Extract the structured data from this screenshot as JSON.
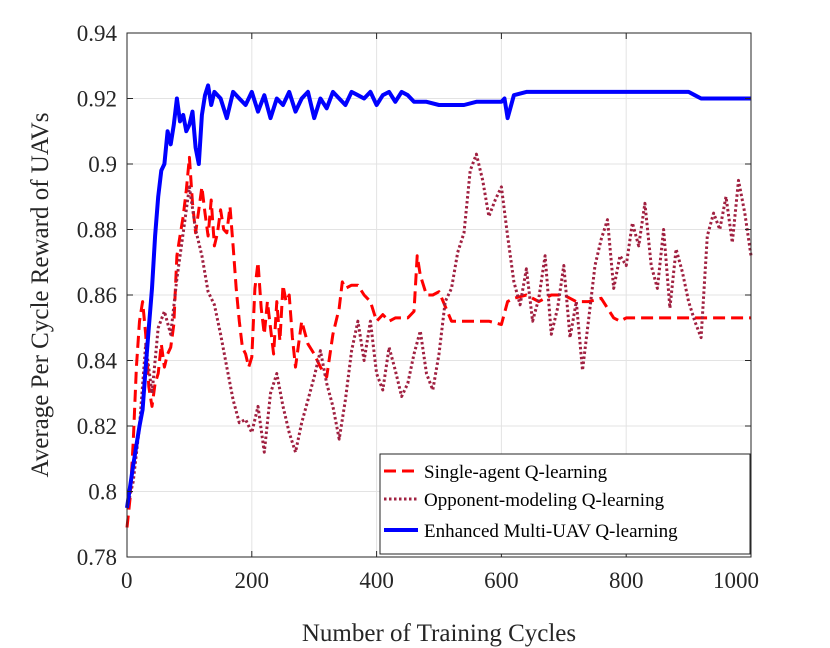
{
  "chart_data": {
    "type": "line",
    "title": "",
    "xlabel": "Number of Training Cycles",
    "ylabel": "Average Per Cycle Reward of UAVs",
    "xlim": [
      0,
      1000
    ],
    "ylim": [
      0.78,
      0.94
    ],
    "grid": true,
    "legend_position": "bottom-right",
    "xticks": [
      {
        "value": 0,
        "label": "0"
      },
      {
        "value": 200,
        "label": "200"
      },
      {
        "value": 400,
        "label": "400"
      },
      {
        "value": 600,
        "label": "600"
      },
      {
        "value": 800,
        "label": "800"
      },
      {
        "value": 1000,
        "label": "1000"
      }
    ],
    "yticks": [
      {
        "value": 0.78,
        "label": "0.78"
      },
      {
        "value": 0.8,
        "label": "0.8"
      },
      {
        "value": 0.82,
        "label": "0.82"
      },
      {
        "value": 0.84,
        "label": "0.84"
      },
      {
        "value": 0.86,
        "label": "0.86"
      },
      {
        "value": 0.88,
        "label": "0.88"
      },
      {
        "value": 0.9,
        "label": "0.9"
      },
      {
        "value": 0.92,
        "label": "0.92"
      },
      {
        "value": 0.94,
        "label": "0.94"
      }
    ],
    "series": [
      {
        "name": "Single-agent Q-learning",
        "color": "#ff0000",
        "style": "dashed",
        "x": [
          0,
          5,
          10,
          15,
          20,
          25,
          30,
          35,
          40,
          45,
          50,
          55,
          60,
          65,
          70,
          75,
          80,
          85,
          90,
          95,
          100,
          105,
          110,
          115,
          120,
          125,
          130,
          135,
          140,
          145,
          150,
          155,
          160,
          165,
          170,
          175,
          180,
          185,
          190,
          195,
          200,
          205,
          210,
          215,
          220,
          225,
          230,
          235,
          240,
          245,
          250,
          255,
          260,
          265,
          270,
          280,
          290,
          300,
          310,
          320,
          330,
          340,
          345,
          350,
          360,
          370,
          380,
          390,
          400,
          410,
          420,
          430,
          440,
          450,
          460,
          465,
          470,
          480,
          490,
          500,
          520,
          540,
          560,
          580,
          600,
          610,
          620,
          640,
          660,
          680,
          700,
          720,
          740,
          760,
          780,
          790,
          800,
          850,
          900,
          950,
          1000
        ],
        "values": [
          0.789,
          0.798,
          0.815,
          0.838,
          0.852,
          0.858,
          0.848,
          0.832,
          0.826,
          0.833,
          0.836,
          0.845,
          0.838,
          0.842,
          0.844,
          0.851,
          0.872,
          0.878,
          0.884,
          0.892,
          0.902,
          0.888,
          0.879,
          0.886,
          0.893,
          0.885,
          0.878,
          0.889,
          0.875,
          0.879,
          0.886,
          0.88,
          0.879,
          0.887,
          0.875,
          0.862,
          0.852,
          0.844,
          0.842,
          0.838,
          0.841,
          0.862,
          0.87,
          0.856,
          0.848,
          0.858,
          0.85,
          0.842,
          0.858,
          0.846,
          0.863,
          0.858,
          0.86,
          0.847,
          0.838,
          0.852,
          0.845,
          0.842,
          0.838,
          0.835,
          0.848,
          0.856,
          0.864,
          0.862,
          0.863,
          0.863,
          0.86,
          0.858,
          0.852,
          0.854,
          0.852,
          0.853,
          0.853,
          0.853,
          0.855,
          0.872,
          0.866,
          0.86,
          0.86,
          0.861,
          0.852,
          0.852,
          0.852,
          0.852,
          0.851,
          0.858,
          0.859,
          0.86,
          0.858,
          0.86,
          0.86,
          0.858,
          0.858,
          0.859,
          0.853,
          0.852,
          0.853,
          0.853,
          0.853,
          0.853,
          0.853
        ]
      },
      {
        "name": "Opponent-modeling Q-learning",
        "color": "#a02040",
        "style": "dotted",
        "x": [
          0,
          10,
          20,
          30,
          40,
          50,
          60,
          70,
          80,
          90,
          100,
          110,
          120,
          130,
          140,
          150,
          160,
          170,
          180,
          190,
          200,
          210,
          220,
          230,
          240,
          250,
          260,
          270,
          280,
          290,
          300,
          310,
          320,
          330,
          340,
          350,
          360,
          370,
          380,
          390,
          400,
          410,
          420,
          430,
          440,
          450,
          460,
          470,
          480,
          490,
          500,
          510,
          520,
          530,
          540,
          550,
          560,
          570,
          580,
          590,
          600,
          610,
          620,
          630,
          640,
          650,
          660,
          670,
          680,
          690,
          700,
          710,
          720,
          730,
          740,
          750,
          760,
          770,
          780,
          790,
          800,
          810,
          820,
          830,
          840,
          850,
          860,
          870,
          880,
          890,
          900,
          910,
          920,
          930,
          940,
          950,
          960,
          970,
          980,
          990,
          1000
        ],
        "values": [
          0.795,
          0.803,
          0.82,
          0.845,
          0.83,
          0.85,
          0.855,
          0.848,
          0.865,
          0.879,
          0.893,
          0.88,
          0.872,
          0.861,
          0.857,
          0.848,
          0.838,
          0.828,
          0.821,
          0.822,
          0.818,
          0.826,
          0.812,
          0.83,
          0.836,
          0.826,
          0.818,
          0.812,
          0.821,
          0.828,
          0.835,
          0.843,
          0.833,
          0.826,
          0.816,
          0.828,
          0.843,
          0.852,
          0.84,
          0.852,
          0.836,
          0.831,
          0.844,
          0.837,
          0.829,
          0.833,
          0.842,
          0.849,
          0.836,
          0.831,
          0.842,
          0.858,
          0.862,
          0.873,
          0.879,
          0.898,
          0.903,
          0.895,
          0.884,
          0.889,
          0.893,
          0.878,
          0.864,
          0.857,
          0.868,
          0.852,
          0.859,
          0.872,
          0.848,
          0.856,
          0.869,
          0.847,
          0.858,
          0.837,
          0.853,
          0.869,
          0.877,
          0.883,
          0.862,
          0.872,
          0.869,
          0.882,
          0.875,
          0.888,
          0.869,
          0.862,
          0.88,
          0.856,
          0.874,
          0.867,
          0.858,
          0.852,
          0.847,
          0.878,
          0.885,
          0.88,
          0.89,
          0.876,
          0.895,
          0.885,
          0.872
        ]
      },
      {
        "name": "Enhanced Multi-UAV Q-learning",
        "color": "#0000ff",
        "style": "solid",
        "x": [
          0,
          10,
          20,
          25,
          30,
          35,
          40,
          45,
          50,
          55,
          60,
          65,
          70,
          75,
          80,
          85,
          90,
          95,
          100,
          105,
          110,
          115,
          120,
          125,
          130,
          135,
          140,
          150,
          160,
          170,
          180,
          190,
          200,
          210,
          220,
          230,
          240,
          250,
          260,
          270,
          280,
          290,
          300,
          310,
          320,
          330,
          340,
          350,
          360,
          370,
          380,
          390,
          400,
          410,
          420,
          430,
          440,
          450,
          460,
          470,
          480,
          500,
          520,
          540,
          560,
          580,
          600,
          605,
          610,
          620,
          640,
          660,
          680,
          700,
          720,
          740,
          760,
          780,
          800,
          820,
          840,
          860,
          880,
          900,
          910,
          920,
          950,
          1000
        ],
        "values": [
          0.795,
          0.808,
          0.82,
          0.825,
          0.838,
          0.85,
          0.862,
          0.878,
          0.89,
          0.898,
          0.9,
          0.91,
          0.906,
          0.912,
          0.92,
          0.913,
          0.915,
          0.91,
          0.912,
          0.916,
          0.905,
          0.9,
          0.915,
          0.921,
          0.924,
          0.918,
          0.922,
          0.92,
          0.914,
          0.922,
          0.92,
          0.918,
          0.922,
          0.916,
          0.921,
          0.914,
          0.92,
          0.918,
          0.922,
          0.916,
          0.92,
          0.922,
          0.914,
          0.92,
          0.917,
          0.922,
          0.92,
          0.918,
          0.922,
          0.921,
          0.92,
          0.922,
          0.918,
          0.921,
          0.922,
          0.919,
          0.922,
          0.921,
          0.919,
          0.919,
          0.919,
          0.918,
          0.918,
          0.918,
          0.919,
          0.919,
          0.919,
          0.92,
          0.914,
          0.921,
          0.922,
          0.922,
          0.922,
          0.922,
          0.922,
          0.922,
          0.922,
          0.922,
          0.922,
          0.922,
          0.922,
          0.922,
          0.922,
          0.922,
          0.921,
          0.92,
          0.92,
          0.92
        ]
      }
    ]
  }
}
